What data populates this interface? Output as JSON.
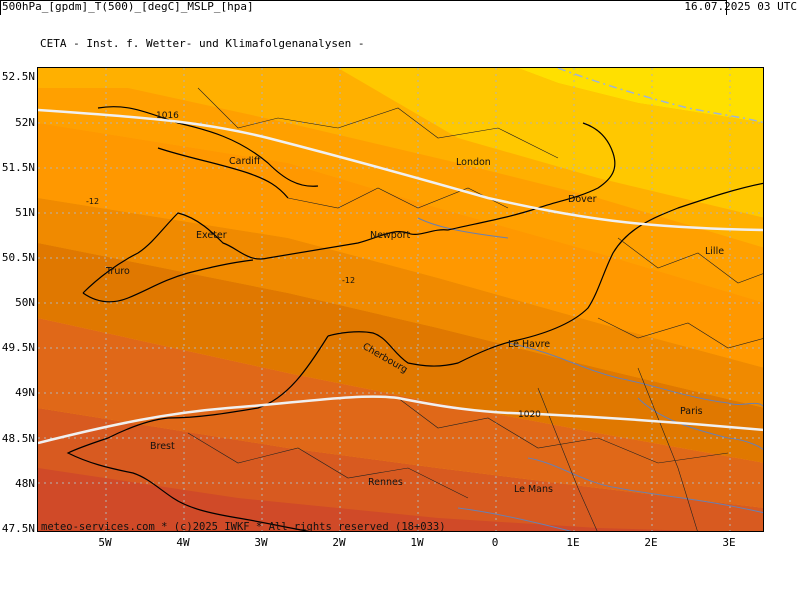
{
  "header": {
    "title": "CETA - Inst. f. Wetter- und Klimafolgenanalysen -",
    "fields": "500hPa_[gpdm]_T(500)_[degC]_MSLP_[hpa]",
    "datetime": "16.07.2025 03 UTC"
  },
  "axes": {
    "lat_labels": [
      "52.5N",
      "52N",
      "51.5N",
      "51N",
      "50.5N",
      "50N",
      "49.5N",
      "49N",
      "48.5N",
      "48N",
      "47.5N"
    ],
    "lon_labels": [
      "5W",
      "4W",
      "3W",
      "2W",
      "1W",
      "0",
      "1E",
      "2E",
      "3E"
    ]
  },
  "cities": [
    {
      "name": "Cardiff"
    },
    {
      "name": "London"
    },
    {
      "name": "Dover"
    },
    {
      "name": "Exeter"
    },
    {
      "name": "Newport"
    },
    {
      "name": "Lille"
    },
    {
      "name": "Truro"
    },
    {
      "name": "Cherbourg"
    },
    {
      "name": "Le Havre"
    },
    {
      "name": "Paris"
    },
    {
      "name": "Brest"
    },
    {
      "name": "Rennes"
    },
    {
      "name": "Le Mans"
    }
  ],
  "isobars": [
    {
      "label": "1016"
    },
    {
      "label": "1020"
    }
  ],
  "temperature_labels": [
    "-12",
    "-12"
  ],
  "footer": "meteo-services.com * (c)2025 IWKF * All rights reserved (18+033)",
  "colors": {
    "band_1": "#ffe000",
    "band_2": "#ffc800",
    "band_3": "#ffb000",
    "band_4": "#ff9800",
    "band_5": "#f08a00",
    "band_6": "#e07800",
    "band_7": "#e06818",
    "band_8": "#d85a20",
    "isobar": "#f0f0f0",
    "coast": "#000000",
    "grid": "#b4b4b4"
  }
}
